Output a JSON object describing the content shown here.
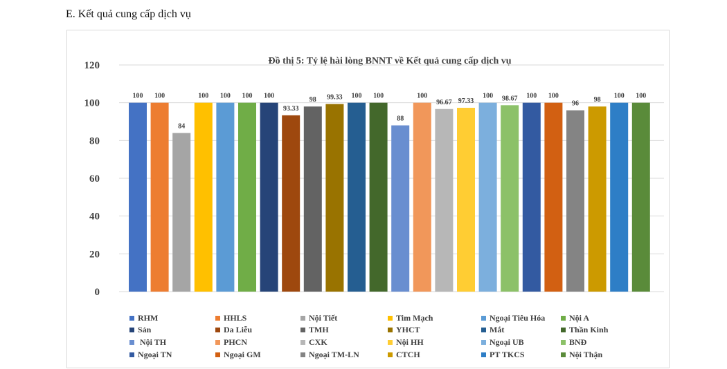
{
  "page": {
    "heading": "E. Kết quả cung cấp dịch vụ"
  },
  "chart_data": {
    "type": "bar",
    "title": "Đồ thị 5: Tỷ lệ hài lòng BNNT về Kết quả cung cấp dịch vụ",
    "xlabel": "",
    "ylabel": "",
    "ylim": [
      0,
      120
    ],
    "yticks": [
      0,
      20,
      40,
      60,
      80,
      100,
      120
    ],
    "grid": true,
    "legend_position": "bottom",
    "series": [
      {
        "name": "RHM",
        "value": 100,
        "label": "100",
        "color": "#4472C4"
      },
      {
        "name": "HHLS",
        "value": 100,
        "label": "100",
        "color": "#ED7D31"
      },
      {
        "name": "Nội Tiết",
        "value": 84,
        "label": "84",
        "color": "#A5A5A5"
      },
      {
        "name": "Tim Mạch",
        "value": 100,
        "label": "100",
        "color": "#FFC000"
      },
      {
        "name": "Ngoại Tiêu Hóa",
        "value": 100,
        "label": "100",
        "color": "#5B9BD5"
      },
      {
        "name": "Nội A",
        "value": 100,
        "label": "100",
        "color": "#70AD47"
      },
      {
        "name": "Sản",
        "value": 100,
        "label": "100",
        "color": "#264478"
      },
      {
        "name": "Da Liễu",
        "value": 93.33,
        "label": "93.33",
        "color": "#9E480E"
      },
      {
        "name": "TMH",
        "value": 98,
        "label": "98",
        "color": "#636363"
      },
      {
        "name": "YHCT",
        "value": 99.33,
        "label": "99.33",
        "color": "#997300"
      },
      {
        "name": "Mắt",
        "value": 100,
        "label": "100",
        "color": "#255E91"
      },
      {
        "name": "Thần Kinh",
        "value": 100,
        "label": "100",
        "color": "#43682B"
      },
      {
        "name": " Nội TH",
        "value": 88,
        "label": "88",
        "color": "#698ED0"
      },
      {
        "name": "PHCN",
        "value": 100,
        "label": "100",
        "color": "#F1975A"
      },
      {
        "name": "CXK",
        "value": 96.67,
        "label": "96.67",
        "color": "#B7B7B7"
      },
      {
        "name": "Nội HH",
        "value": 97.33,
        "label": "97.33",
        "color": "#FFCD33"
      },
      {
        "name": "Ngoại UB",
        "value": 100,
        "label": "100",
        "color": "#7CAFDD"
      },
      {
        "name": "BNĐ",
        "value": 98.67,
        "label": "98.67",
        "color": "#8CC168"
      },
      {
        "name": "Ngoại TN",
        "value": 100,
        "label": "100",
        "color": "#335AA1"
      },
      {
        "name": "Ngoại GM",
        "value": 100,
        "label": "100",
        "color": "#D26012"
      },
      {
        "name": "Ngoại TM-LN",
        "value": 96,
        "label": "96",
        "color": "#848484"
      },
      {
        "name": "CTCH",
        "value": 98,
        "label": "98",
        "color": "#CC9A00"
      },
      {
        "name": "PT TKCS",
        "value": 100,
        "label": "100",
        "color": "#2E7EC6"
      },
      {
        "name": "Nội Thận",
        "value": 100,
        "label": "100",
        "color": "#5A8B3A"
      }
    ]
  }
}
